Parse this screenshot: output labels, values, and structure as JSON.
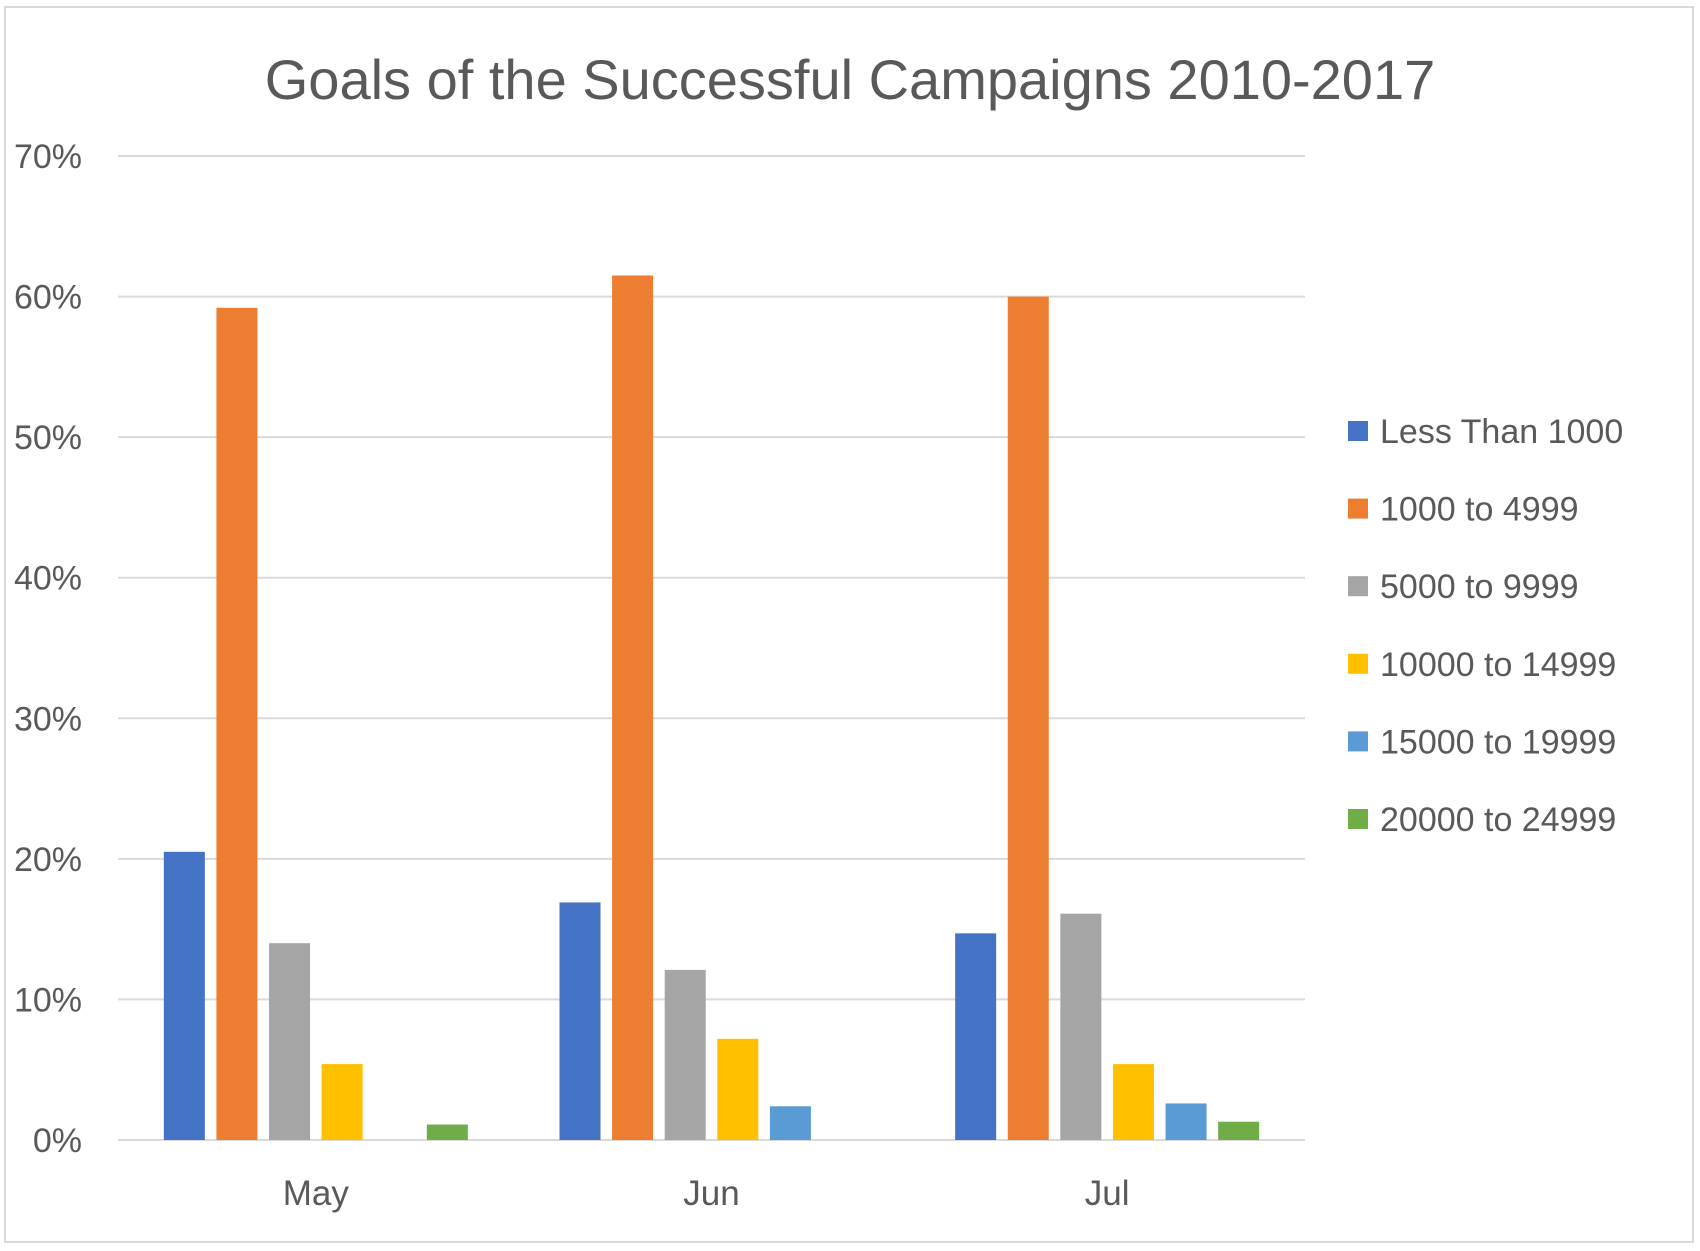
{
  "chart_data": {
    "type": "bar",
    "title": "Goals of the Successful Campaigns 2010-2017",
    "xlabel": "",
    "ylabel": "",
    "categories": [
      "May",
      "Jun",
      "Jul"
    ],
    "ylim": [
      0,
      0.7
    ],
    "y_ticks": [
      0,
      0.1,
      0.2,
      0.3,
      0.4,
      0.5,
      0.6,
      0.7
    ],
    "y_tick_labels": [
      "0%",
      "10%",
      "20%",
      "30%",
      "40%",
      "50%",
      "60%",
      "70%"
    ],
    "grid": true,
    "legend_position": "right",
    "series": [
      {
        "name": "Less Than 1000",
        "color": "#4472C4",
        "values": [
          0.205,
          0.169,
          0.147
        ]
      },
      {
        "name": "1000 to 4999",
        "color": "#ED7D31",
        "values": [
          0.592,
          0.615,
          0.6
        ]
      },
      {
        "name": "5000 to 9999",
        "color": "#A5A5A5",
        "values": [
          0.14,
          0.121,
          0.161
        ]
      },
      {
        "name": "10000 to 14999",
        "color": "#FFC000",
        "values": [
          0.054,
          0.072,
          0.054
        ]
      },
      {
        "name": "15000 to 19999",
        "color": "#5B9BD5",
        "values": [
          0,
          0.024,
          0.026
        ]
      },
      {
        "name": "20000 to 24999",
        "color": "#70AD47",
        "values": [
          0.011,
          0,
          0.013
        ]
      }
    ]
  }
}
